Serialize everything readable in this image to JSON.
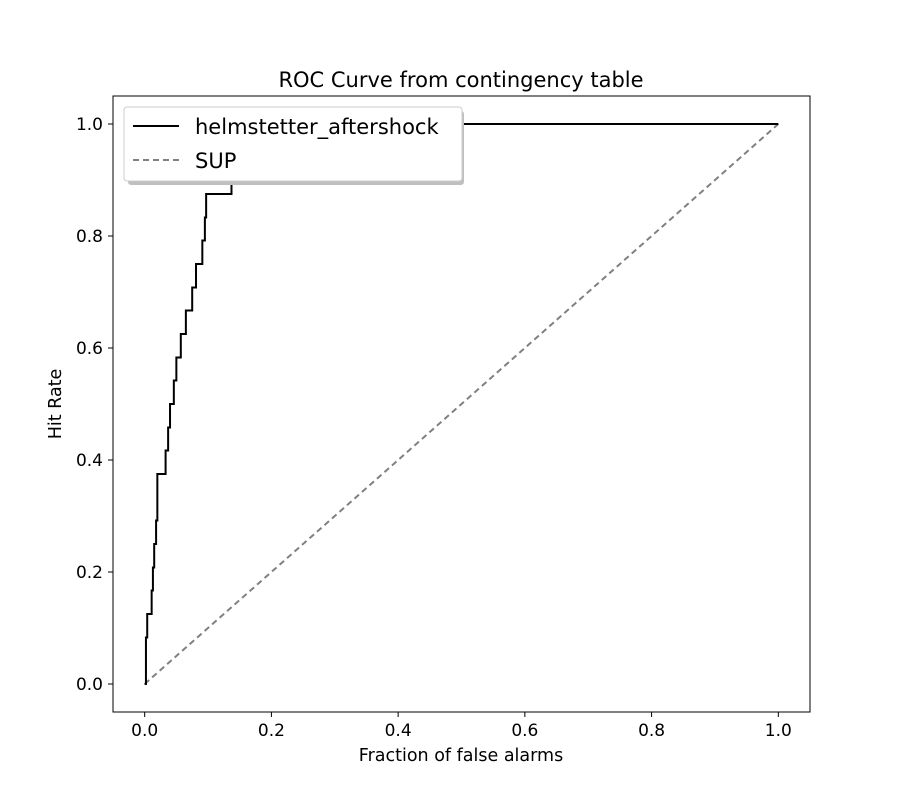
{
  "chart_data": {
    "type": "line",
    "title": "ROC Curve from contingency table",
    "xlabel": "Fraction of false alarms",
    "ylabel": "Hit Rate",
    "xlim": [
      -0.05,
      1.05
    ],
    "ylim": [
      -0.05,
      1.05
    ],
    "x_ticks": [
      0.0,
      0.2,
      0.4,
      0.6,
      0.8,
      1.0
    ],
    "y_ticks": [
      0.0,
      0.2,
      0.4,
      0.6,
      0.8,
      1.0
    ],
    "x_tick_labels": [
      "0.0",
      "0.2",
      "0.4",
      "0.6",
      "0.8",
      "1.0"
    ],
    "y_tick_labels": [
      "0.0",
      "0.2",
      "0.4",
      "0.6",
      "0.8",
      "1.0"
    ],
    "grid": false,
    "legend_position": "top-left",
    "series": [
      {
        "name": "helmstetter_aftershock",
        "color": "#000000",
        "dash": "solid",
        "step": true,
        "x": [
          0.0,
          0.002,
          0.004,
          0.011,
          0.013,
          0.015,
          0.018,
          0.02,
          0.033,
          0.037,
          0.04,
          0.046,
          0.05,
          0.057,
          0.065,
          0.075,
          0.081,
          0.091,
          0.095,
          0.097,
          0.137,
          0.182,
          0.186,
          0.19,
          0.2,
          0.21,
          1.0
        ],
        "y": [
          0.0,
          0.083,
          0.125,
          0.167,
          0.208,
          0.25,
          0.292,
          0.375,
          0.417,
          0.458,
          0.5,
          0.542,
          0.583,
          0.625,
          0.667,
          0.708,
          0.75,
          0.792,
          0.833,
          0.875,
          0.917,
          0.958,
          1.0,
          1.0,
          1.0,
          1.0,
          1.0
        ]
      },
      {
        "name": "SUP",
        "color": "#808080",
        "dash": "dashed",
        "step": false,
        "x": [
          0.0,
          1.0
        ],
        "y": [
          0.0,
          1.0
        ]
      }
    ]
  }
}
